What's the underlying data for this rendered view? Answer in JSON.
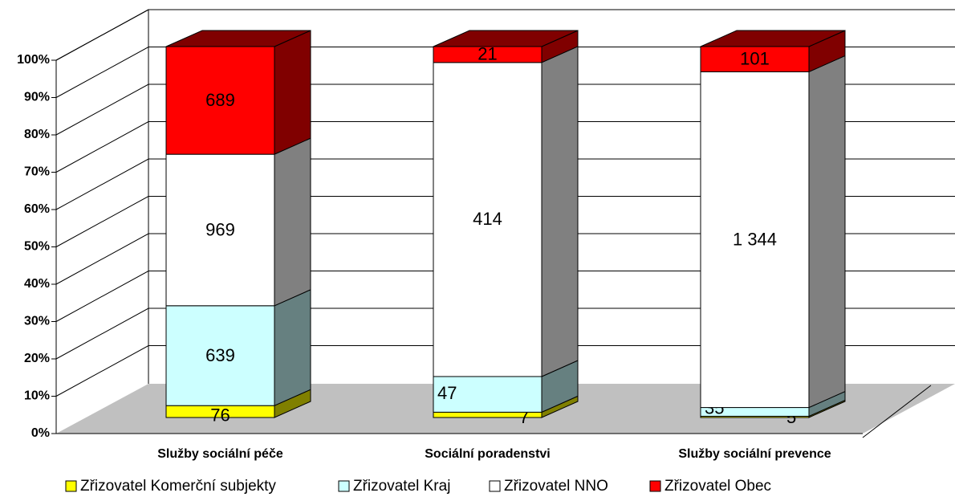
{
  "chart_data": {
    "type": "bar",
    "stacking": "percent",
    "categories": [
      "Služby sociální péče",
      "Sociální poradenstvi",
      "Služby sociální prevence"
    ],
    "series": [
      {
        "name": "Zřizovatel Komerční subjekty",
        "color": "#ffff00",
        "values": [
          76,
          7,
          5
        ]
      },
      {
        "name": "Zřizovatel Kraj",
        "color": "#ccffff",
        "values": [
          639,
          47,
          35
        ]
      },
      {
        "name": "Zřizovatel NNO",
        "color": "#ffffff",
        "values": [
          969,
          414,
          1344
        ],
        "value_labels": [
          "969",
          "414",
          "1 344"
        ]
      },
      {
        "name": "Zřizovatel Obec",
        "color": "#ff0000",
        "values": [
          689,
          21,
          101
        ]
      }
    ],
    "ylim": [
      0,
      100
    ],
    "yticks": [
      {
        "value": 0,
        "label": "0%"
      },
      {
        "value": 10,
        "label": "10%"
      },
      {
        "value": 20,
        "label": "20%"
      },
      {
        "value": 30,
        "label": "30%"
      },
      {
        "value": 40,
        "label": "40%"
      },
      {
        "value": 50,
        "label": "50%"
      },
      {
        "value": 60,
        "label": "60%"
      },
      {
        "value": 70,
        "label": "70%"
      },
      {
        "value": 80,
        "label": "80%"
      },
      {
        "value": 90,
        "label": "90%"
      },
      {
        "value": 100,
        "label": "100%"
      }
    ],
    "grid": true,
    "legend": "bottom"
  }
}
